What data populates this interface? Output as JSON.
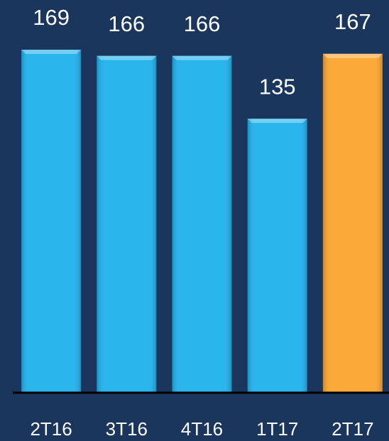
{
  "chart_data": {
    "type": "bar",
    "categories": [
      "2T16",
      "3T16",
      "4T16",
      "1T17",
      "2T17"
    ],
    "values": [
      169,
      166,
      166,
      135,
      167
    ],
    "colors": [
      "#1fb1ec",
      "#1fb1ec",
      "#1fb1ec",
      "#1fb1ec",
      "#fba530"
    ],
    "ylim": [
      0,
      190
    ]
  }
}
